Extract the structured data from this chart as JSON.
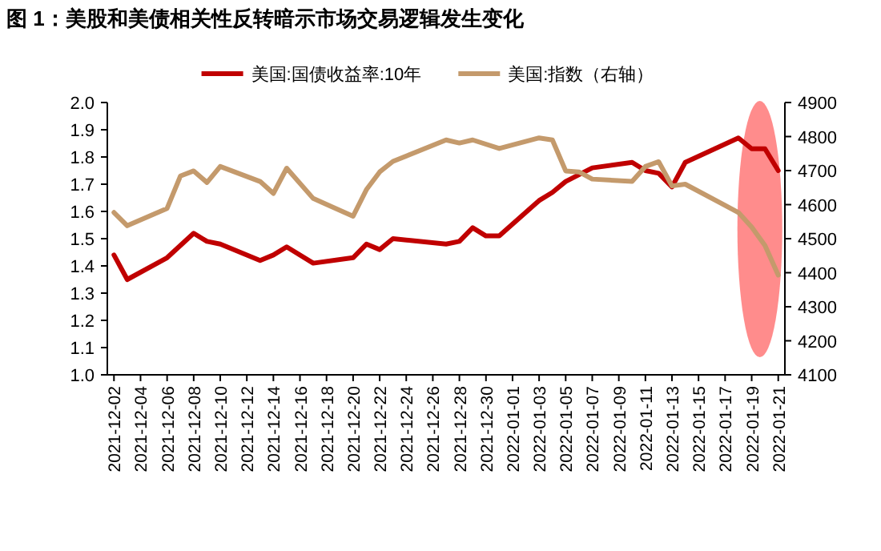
{
  "chart_data": {
    "type": "line",
    "title": "图 1：美股和美债相关性反转暗示市场交易逻辑发生变化",
    "xlim": [
      "2021-12-01T12:00",
      "2022-01-21T12:00"
    ],
    "xticks": [
      "2021-12-02",
      "2021-12-04",
      "2021-12-06",
      "2021-12-08",
      "2021-12-10",
      "2021-12-12",
      "2021-12-14",
      "2021-12-16",
      "2021-12-18",
      "2021-12-20",
      "2021-12-22",
      "2021-12-24",
      "2021-12-26",
      "2021-12-28",
      "2021-12-30",
      "2022-01-01",
      "2022-01-03",
      "2022-01-05",
      "2022-01-07",
      "2022-01-09",
      "2022-01-11",
      "2022-01-13",
      "2022-01-15",
      "2022-01-17",
      "2022-01-19",
      "2022-01-21"
    ],
    "ylim": [
      1.0,
      2.0
    ],
    "yticks": [
      {
        "value": 1.0,
        "label": "1.0"
      },
      {
        "value": 1.1,
        "label": "1.1"
      },
      {
        "value": 1.2,
        "label": "1.2"
      },
      {
        "value": 1.3,
        "label": "1.3"
      },
      {
        "value": 1.4,
        "label": "1.4"
      },
      {
        "value": 1.5,
        "label": "1.5"
      },
      {
        "value": 1.6,
        "label": "1.6"
      },
      {
        "value": 1.7,
        "label": "1.7"
      },
      {
        "value": 1.8,
        "label": "1.8"
      },
      {
        "value": 1.9,
        "label": "1.9"
      },
      {
        "value": 2.0,
        "label": "2.0"
      }
    ],
    "y2lim": [
      4100,
      4900
    ],
    "y2ticks": [
      4100,
      4200,
      4300,
      4400,
      4500,
      4600,
      4700,
      4800,
      4900
    ],
    "legend": "top",
    "series": [
      {
        "name": "美国:国债收益率:10年",
        "color": "#c00000",
        "x": [
          "2021-12-02",
          "2021-12-03",
          "2021-12-06",
          "2021-12-08",
          "2021-12-09",
          "2021-12-10",
          "2021-12-13",
          "2021-12-14",
          "2021-12-15",
          "2021-12-17",
          "2021-12-20",
          "2021-12-21",
          "2021-12-22",
          "2021-12-23",
          "2021-12-27",
          "2021-12-28",
          "2021-12-29",
          "2021-12-30",
          "2021-12-31",
          "2022-01-03",
          "2022-01-04",
          "2022-01-05",
          "2022-01-07",
          "2022-01-10",
          "2022-01-11",
          "2022-01-12",
          "2022-01-13",
          "2022-01-14",
          "2022-01-18",
          "2022-01-19",
          "2022-01-20",
          "2022-01-21"
        ],
        "values": [
          1.44,
          1.35,
          1.43,
          1.52,
          1.49,
          1.48,
          1.42,
          1.44,
          1.47,
          1.41,
          1.43,
          1.48,
          1.46,
          1.5,
          1.48,
          1.49,
          1.54,
          1.51,
          1.51,
          1.64,
          1.67,
          1.71,
          1.76,
          1.78,
          1.75,
          1.74,
          1.69,
          1.78,
          1.87,
          1.83,
          1.83,
          1.75
        ]
      },
      {
        "name": "美国:指数（右轴）",
        "color": "#c49a6c",
        "axis": "y2",
        "x": [
          "2021-12-02",
          "2021-12-03",
          "2021-12-06",
          "2021-12-07",
          "2021-12-08",
          "2021-12-09",
          "2021-12-10",
          "2021-12-13",
          "2021-12-14",
          "2021-12-15",
          "2021-12-17",
          "2021-12-20",
          "2021-12-21",
          "2021-12-22",
          "2021-12-23",
          "2021-12-27",
          "2021-12-28",
          "2021-12-29",
          "2021-12-31",
          "2022-01-03",
          "2022-01-04",
          "2022-01-05",
          "2022-01-06",
          "2022-01-07",
          "2022-01-10",
          "2022-01-11",
          "2022-01-12",
          "2022-01-13",
          "2022-01-14",
          "2022-01-18",
          "2022-01-19",
          "2022-01-20",
          "2022-01-21"
        ],
        "values": [
          4577,
          4538,
          4589,
          4684,
          4699,
          4665,
          4712,
          4668,
          4633,
          4707,
          4618,
          4566,
          4644,
          4696,
          4727,
          4790,
          4781,
          4790,
          4765,
          4796,
          4790,
          4699,
          4696,
          4675,
          4668,
          4712,
          4726,
          4655,
          4660,
          4577,
          4534,
          4480,
          4393
        ]
      }
    ]
  }
}
